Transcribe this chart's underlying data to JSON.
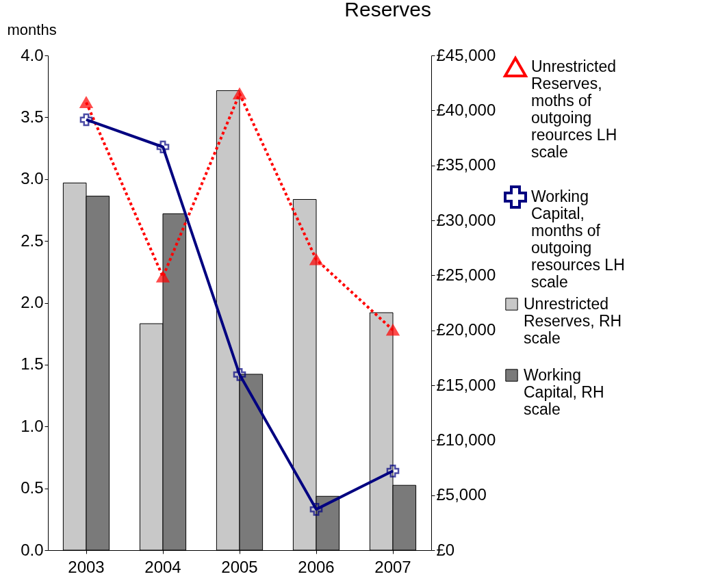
{
  "chart_data": {
    "type": "bar",
    "title": "Reserves",
    "categories": [
      "2003",
      "2004",
      "2005",
      "2006",
      "2007"
    ],
    "ylabel": "months",
    "ylim": [
      0,
      4
    ],
    "yticks": [
      {
        "value": 0,
        "label": "0.0"
      },
      {
        "value": 0.5,
        "label": "0.5"
      },
      {
        "value": 1,
        "label": "1.0"
      },
      {
        "value": 1.5,
        "label": "1.5"
      },
      {
        "value": 2,
        "label": "2.0"
      },
      {
        "value": 2.5,
        "label": "2.5"
      },
      {
        "value": 3,
        "label": "3.0"
      },
      {
        "value": 3.5,
        "label": "3.5"
      },
      {
        "value": 4,
        "label": "4.0"
      }
    ],
    "y2lim": [
      0,
      45000
    ],
    "y2ticks": [
      {
        "value": 0,
        "label": "£0"
      },
      {
        "value": 5000,
        "label": "£5,000"
      },
      {
        "value": 10000,
        "label": "£10,000"
      },
      {
        "value": 15000,
        "label": "£15,000"
      },
      {
        "value": 20000,
        "label": "£20,000"
      },
      {
        "value": 25000,
        "label": "£25,000"
      },
      {
        "value": 30000,
        "label": "£30,000"
      },
      {
        "value": 35000,
        "label": "£35,000"
      },
      {
        "value": 40000,
        "label": "£40,000"
      },
      {
        "value": 45000,
        "label": "£45,000"
      }
    ],
    "grid": false,
    "legend": "right",
    "series": [
      {
        "name": "Unrestricted Reserves, RH scale",
        "type": "bar",
        "axis": "y2",
        "color": "#c8c8c8",
        "values": [
          33400,
          20600,
          41800,
          31900,
          21600
        ]
      },
      {
        "name": "Working Capital, RH scale",
        "type": "bar",
        "axis": "y2",
        "color": "#7a7a7a",
        "values": [
          32200,
          30600,
          16000,
          4900,
          5900
        ]
      },
      {
        "name": "Unrestricted Reserves, moths of outgoing reources LH scale",
        "type": "line",
        "color": "#ff0000",
        "line_style": "dotted",
        "marker": "triangle",
        "values": [
          3.62,
          2.21,
          3.69,
          2.35,
          1.78
        ]
      },
      {
        "name": "Working Capital, months of outgoing resources LH scale",
        "type": "line",
        "color": "#000080",
        "line_style": "solid",
        "marker": "cross",
        "values": [
          3.48,
          3.26,
          1.42,
          0.33,
          0.64
        ]
      }
    ]
  }
}
